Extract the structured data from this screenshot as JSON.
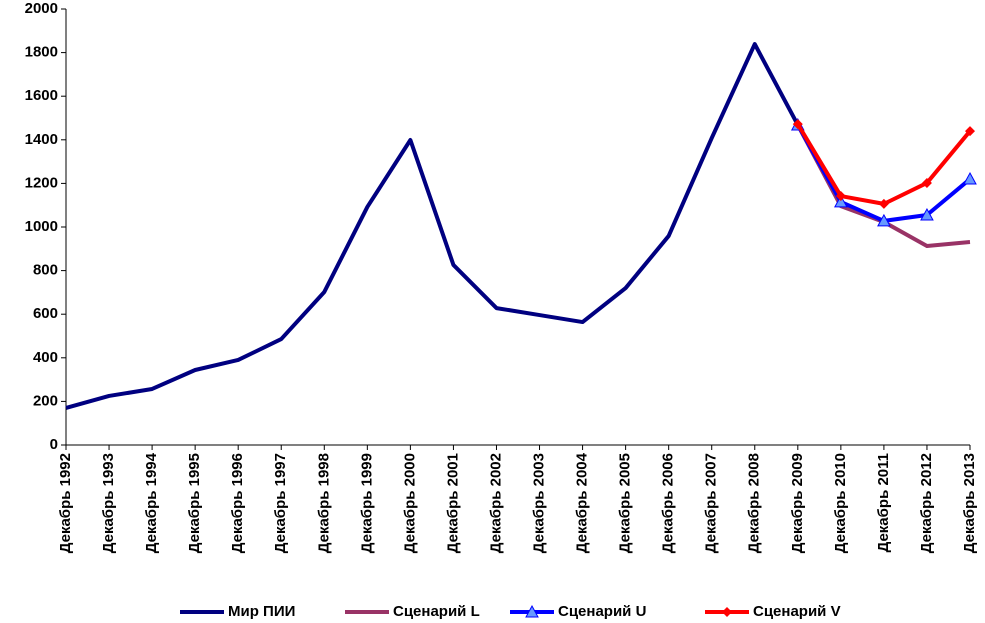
{
  "chart_data": {
    "type": "line",
    "categories": [
      "Декабрь 1992",
      "Декабрь 1993",
      "Декабрь 1994",
      "Декабрь 1995",
      "Декабрь 1996",
      "Декабрь 1997",
      "Декабрь 1998",
      "Декабрь 1999",
      "Декабрь 2000",
      "Декабрь 2001",
      "Декабрь 2002",
      "Декабрь 2003",
      "Декабрь 2004",
      "Декабрь 2005",
      "Декабрь 2006",
      "Декабрь 2007",
      "Декабрь 2008",
      "Декабрь 2009",
      "Декабрь 2010",
      "Декабрь 2011",
      "Декабрь 2012",
      "Декабрь 2013"
    ],
    "series": [
      {
        "name": "Мир ПИИ",
        "color": "#000080",
        "marker": "none",
        "values": [
          170,
          225,
          257,
          344,
          390,
          486,
          702,
          1092,
          1399,
          826,
          628,
          596,
          564,
          720,
          959,
          1408,
          1839,
          1468,
          null,
          null,
          null,
          null
        ]
      },
      {
        "name": "Сценарий L",
        "color": "#993366",
        "marker": "none",
        "values": [
          null,
          null,
          null,
          null,
          null,
          null,
          null,
          null,
          null,
          null,
          null,
          null,
          null,
          null,
          null,
          null,
          null,
          1468,
          1096,
          1023,
          913,
          931
        ]
      },
      {
        "name": "Сценарий U",
        "color": "#0000ff",
        "marker": "triangle",
        "values": [
          null,
          null,
          null,
          null,
          null,
          null,
          null,
          null,
          null,
          null,
          null,
          null,
          null,
          null,
          null,
          null,
          null,
          1468,
          1115,
          1028,
          1055,
          1220
        ]
      },
      {
        "name": "Сценарий V",
        "color": "#ff0000",
        "marker": "diamond",
        "values": [
          null,
          null,
          null,
          null,
          null,
          null,
          null,
          null,
          null,
          null,
          null,
          null,
          null,
          null,
          null,
          null,
          null,
          1472,
          1142,
          1106,
          1202,
          1440
        ]
      }
    ],
    "ylim": [
      0,
      2000
    ],
    "yticks": [
      0,
      200,
      400,
      600,
      800,
      1000,
      1200,
      1400,
      1600,
      1800,
      2000
    ],
    "grid": false,
    "legend": "bottom"
  }
}
